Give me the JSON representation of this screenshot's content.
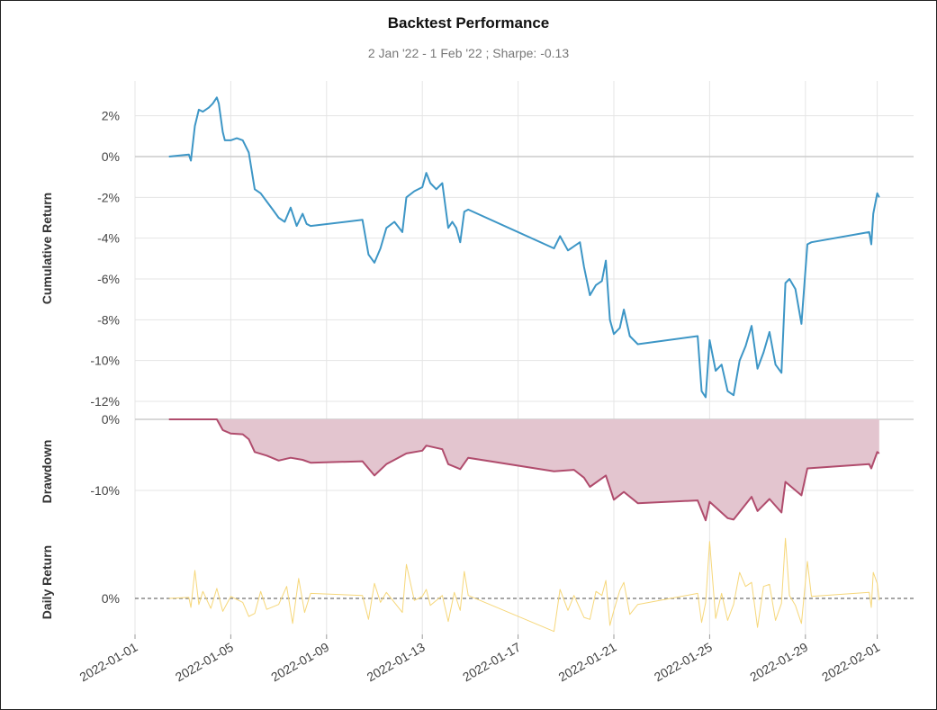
{
  "title": "Backtest Performance",
  "subtitle": "2 Jan '22 -  1 Feb '22 ;  Sharpe: -0.13",
  "colors": {
    "cumulative": "#3d96c6",
    "drawdown_line": "#b04c6d",
    "drawdown_fill": "#e3c5cf",
    "daily": "#f6d77a",
    "grid": "#e5e5e5",
    "zero": "#cccccc"
  },
  "chart_data": [
    {
      "type": "line",
      "ylabel": "Cumulative Return",
      "x_ticks": [
        "2022-01-01",
        "2022-01-05",
        "2022-01-09",
        "2022-01-13",
        "2022-01-17",
        "2022-01-21",
        "2022-01-25",
        "2022-01-29",
        "2022-02-01"
      ],
      "y_ticks": [
        "2%",
        "0%",
        "-2%",
        "-4%",
        "-6%",
        "-8%",
        "-10%",
        "-12%"
      ],
      "y_tick_values": [
        2,
        0,
        -2,
        -4,
        -6,
        -8,
        -10,
        -12
      ],
      "ylim": [
        -12.8,
        3.6
      ],
      "grid": true,
      "points": [
        [
          "2022-01-02 10:00",
          0
        ],
        [
          "2022-01-03 06:00",
          0.1
        ],
        [
          "2022-01-03 08:00",
          -0.2
        ],
        [
          "2022-01-03 12:00",
          1.5
        ],
        [
          "2022-01-03 16:00",
          2.3
        ],
        [
          "2022-01-03 20:00",
          2.2
        ],
        [
          "2022-01-04 02:00",
          2.4
        ],
        [
          "2022-01-04 06:00",
          2.6
        ],
        [
          "2022-01-04 10:00",
          2.9
        ],
        [
          "2022-01-04 12:00",
          2.6
        ],
        [
          "2022-01-04 16:00",
          1.2
        ],
        [
          "2022-01-04 18:00",
          0.8
        ],
        [
          "2022-01-05 00:00",
          0.8
        ],
        [
          "2022-01-05 06:00",
          0.9
        ],
        [
          "2022-01-05 12:00",
          0.8
        ],
        [
          "2022-01-05 18:00",
          0.2
        ],
        [
          "2022-01-06 00:00",
          -1.6
        ],
        [
          "2022-01-06 06:00",
          -1.8
        ],
        [
          "2022-01-06 12:00",
          -2.2
        ],
        [
          "2022-01-06 18:00",
          -2.6
        ],
        [
          "2022-01-07 00:00",
          -3.0
        ],
        [
          "2022-01-07 06:00",
          -3.2
        ],
        [
          "2022-01-07 12:00",
          -2.5
        ],
        [
          "2022-01-07 18:00",
          -3.4
        ],
        [
          "2022-01-08 00:00",
          -2.8
        ],
        [
          "2022-01-08 04:00",
          -3.3
        ],
        [
          "2022-01-08 08:00",
          -3.4
        ],
        [
          "2022-01-10 12:00",
          -3.1
        ],
        [
          "2022-01-10 18:00",
          -4.8
        ],
        [
          "2022-01-11 00:00",
          -5.2
        ],
        [
          "2022-01-11 06:00",
          -4.5
        ],
        [
          "2022-01-11 12:00",
          -3.5
        ],
        [
          "2022-01-11 20:00",
          -3.2
        ],
        [
          "2022-01-12 04:00",
          -3.7
        ],
        [
          "2022-01-12 08:00",
          -2.0
        ],
        [
          "2022-01-12 16:00",
          -1.7
        ],
        [
          "2022-01-13 00:00",
          -1.5
        ],
        [
          "2022-01-13 04:00",
          -0.8
        ],
        [
          "2022-01-13 08:00",
          -1.3
        ],
        [
          "2022-01-13 14:00",
          -1.6
        ],
        [
          "2022-01-13 20:00",
          -1.3
        ],
        [
          "2022-01-14 02:00",
          -3.5
        ],
        [
          "2022-01-14 06:00",
          -3.2
        ],
        [
          "2022-01-14 10:00",
          -3.5
        ],
        [
          "2022-01-14 14:00",
          -4.2
        ],
        [
          "2022-01-14 18:00",
          -2.7
        ],
        [
          "2022-01-14 22:00",
          -2.6
        ],
        [
          "2022-01-18 12:00",
          -4.5
        ],
        [
          "2022-01-18 18:00",
          -3.9
        ],
        [
          "2022-01-19 02:00",
          -4.6
        ],
        [
          "2022-01-19 08:00",
          -4.4
        ],
        [
          "2022-01-19 14:00",
          -4.2
        ],
        [
          "2022-01-19 18:00",
          -5.4
        ],
        [
          "2022-01-20 00:00",
          -6.8
        ],
        [
          "2022-01-20 06:00",
          -6.3
        ],
        [
          "2022-01-20 12:00",
          -6.1
        ],
        [
          "2022-01-20 16:00",
          -5.1
        ],
        [
          "2022-01-20 20:00",
          -8.0
        ],
        [
          "2022-01-21 00:00",
          -8.7
        ],
        [
          "2022-01-21 06:00",
          -8.4
        ],
        [
          "2022-01-21 10:00",
          -7.5
        ],
        [
          "2022-01-21 16:00",
          -8.8
        ],
        [
          "2022-01-22 00:00",
          -9.2
        ],
        [
          "2022-01-24 12:00",
          -8.8
        ],
        [
          "2022-01-24 16:00",
          -11.5
        ],
        [
          "2022-01-24 20:00",
          -11.8
        ],
        [
          "2022-01-25 00:00",
          -9.0
        ],
        [
          "2022-01-25 06:00",
          -10.5
        ],
        [
          "2022-01-25 12:00",
          -10.2
        ],
        [
          "2022-01-25 18:00",
          -11.5
        ],
        [
          "2022-01-26 00:00",
          -11.7
        ],
        [
          "2022-01-26 06:00",
          -10.0
        ],
        [
          "2022-01-26 12:00",
          -9.3
        ],
        [
          "2022-01-26 18:00",
          -8.3
        ],
        [
          "2022-01-27 00:00",
          -10.4
        ],
        [
          "2022-01-27 06:00",
          -9.6
        ],
        [
          "2022-01-27 12:00",
          -8.6
        ],
        [
          "2022-01-27 18:00",
          -10.2
        ],
        [
          "2022-01-28 00:00",
          -10.6
        ],
        [
          "2022-01-28 04:00",
          -6.2
        ],
        [
          "2022-01-28 08:00",
          -6.0
        ],
        [
          "2022-01-28 14:00",
          -6.5
        ],
        [
          "2022-01-28 20:00",
          -8.2
        ],
        [
          "2022-01-29 02:00",
          -4.3
        ],
        [
          "2022-01-29 06:00",
          -4.2
        ],
        [
          "2022-01-31 16:00",
          -3.7
        ],
        [
          "2022-01-31 18:00",
          -4.3
        ],
        [
          "2022-01-31 20:00",
          -2.8
        ],
        [
          "2022-02-01 00:00",
          -1.8
        ],
        [
          "2022-02-01 02:00",
          -2.0
        ]
      ]
    },
    {
      "type": "area",
      "ylabel": "Drawdown",
      "y_ticks": [
        "0%",
        "-10%"
      ],
      "y_tick_values": [
        0,
        -10
      ],
      "ylim": [
        -15,
        0
      ],
      "grid": true,
      "points": [
        [
          "2022-01-02 10:00",
          0
        ],
        [
          "2022-01-04 00:00",
          0
        ],
        [
          "2022-01-04 10:00",
          0
        ],
        [
          "2022-01-04 16:00",
          -1.5
        ],
        [
          "2022-01-05 00:00",
          -2.0
        ],
        [
          "2022-01-05 12:00",
          -2.1
        ],
        [
          "2022-01-05 18:00",
          -2.8
        ],
        [
          "2022-01-06 00:00",
          -4.6
        ],
        [
          "2022-01-06 12:00",
          -5.1
        ],
        [
          "2022-01-07 00:00",
          -5.8
        ],
        [
          "2022-01-07 12:00",
          -5.4
        ],
        [
          "2022-01-08 00:00",
          -5.7
        ],
        [
          "2022-01-08 08:00",
          -6.1
        ],
        [
          "2022-01-10 12:00",
          -5.9
        ],
        [
          "2022-01-11 00:00",
          -7.9
        ],
        [
          "2022-01-11 12:00",
          -6.3
        ],
        [
          "2022-01-12 08:00",
          -4.8
        ],
        [
          "2022-01-13 00:00",
          -4.4
        ],
        [
          "2022-01-13 04:00",
          -3.7
        ],
        [
          "2022-01-13 20:00",
          -4.2
        ],
        [
          "2022-01-14 02:00",
          -6.3
        ],
        [
          "2022-01-14 14:00",
          -7.0
        ],
        [
          "2022-01-14 22:00",
          -5.4
        ],
        [
          "2022-01-18 12:00",
          -7.3
        ],
        [
          "2022-01-19 08:00",
          -7.1
        ],
        [
          "2022-01-19 18:00",
          -8.2
        ],
        [
          "2022-01-20 00:00",
          -9.5
        ],
        [
          "2022-01-20 16:00",
          -7.9
        ],
        [
          "2022-01-21 00:00",
          -11.3
        ],
        [
          "2022-01-21 10:00",
          -10.2
        ],
        [
          "2022-01-22 00:00",
          -11.8
        ],
        [
          "2022-01-24 12:00",
          -11.4
        ],
        [
          "2022-01-24 20:00",
          -14.2
        ],
        [
          "2022-01-25 00:00",
          -11.6
        ],
        [
          "2022-01-25 18:00",
          -13.9
        ],
        [
          "2022-01-26 00:00",
          -14.1
        ],
        [
          "2022-01-26 18:00",
          -10.9
        ],
        [
          "2022-01-27 00:00",
          -12.9
        ],
        [
          "2022-01-27 12:00",
          -11.2
        ],
        [
          "2022-01-28 00:00",
          -13.1
        ],
        [
          "2022-01-28 04:00",
          -8.8
        ],
        [
          "2022-01-28 20:00",
          -10.7
        ],
        [
          "2022-01-29 02:00",
          -6.9
        ],
        [
          "2022-01-31 16:00",
          -6.3
        ],
        [
          "2022-01-31 18:00",
          -6.9
        ],
        [
          "2022-02-01 00:00",
          -4.6
        ],
        [
          "2022-02-01 02:00",
          -4.8
        ]
      ]
    },
    {
      "type": "line",
      "ylabel": "Daily Return",
      "y_ticks": [
        "0%"
      ],
      "y_tick_values": [
        0
      ],
      "ylim": [
        -3.6,
        6.5
      ],
      "grid": false,
      "zero_line": "dashed",
      "points": [
        [
          "2022-01-02 10:00",
          0
        ],
        [
          "2022-01-03 06:00",
          0.1
        ],
        [
          "2022-01-03 08:00",
          -0.9
        ],
        [
          "2022-01-03 12:00",
          2.8
        ],
        [
          "2022-01-03 16:00",
          -0.6
        ],
        [
          "2022-01-03 20:00",
          0.7
        ],
        [
          "2022-01-04 04:00",
          -1.0
        ],
        [
          "2022-01-04 10:00",
          1.0
        ],
        [
          "2022-01-04 16:00",
          -1.3
        ],
        [
          "2022-01-05 00:00",
          0.2
        ],
        [
          "2022-01-05 12:00",
          -0.4
        ],
        [
          "2022-01-05 18:00",
          -1.8
        ],
        [
          "2022-01-06 00:00",
          -1.5
        ],
        [
          "2022-01-06 06:00",
          0.7
        ],
        [
          "2022-01-06 12:00",
          -1.1
        ],
        [
          "2022-01-07 00:00",
          -0.6
        ],
        [
          "2022-01-07 08:00",
          1.2
        ],
        [
          "2022-01-07 14:00",
          -2.5
        ],
        [
          "2022-01-07 20:00",
          2.0
        ],
        [
          "2022-01-08 02:00",
          -1.4
        ],
        [
          "2022-01-08 08:00",
          0.5
        ],
        [
          "2022-01-10 12:00",
          0.3
        ],
        [
          "2022-01-10 18:00",
          -2.1
        ],
        [
          "2022-01-11 00:00",
          1.5
        ],
        [
          "2022-01-11 06:00",
          -0.4
        ],
        [
          "2022-01-11 12:00",
          0.6
        ],
        [
          "2022-01-12 04:00",
          -1.4
        ],
        [
          "2022-01-12 08:00",
          3.4
        ],
        [
          "2022-01-12 16:00",
          -0.2
        ],
        [
          "2022-01-13 00:00",
          0.2
        ],
        [
          "2022-01-13 04:00",
          0.9
        ],
        [
          "2022-01-13 08:00",
          -0.7
        ],
        [
          "2022-01-13 20:00",
          0.3
        ],
        [
          "2022-01-14 02:00",
          -2.3
        ],
        [
          "2022-01-14 08:00",
          0.6
        ],
        [
          "2022-01-14 14:00",
          -1.2
        ],
        [
          "2022-01-14 18:00",
          2.7
        ],
        [
          "2022-01-14 22:00",
          0.3
        ],
        [
          "2022-01-18 12:00",
          -3.3
        ],
        [
          "2022-01-18 18:00",
          0.9
        ],
        [
          "2022-01-19 02:00",
          -1.2
        ],
        [
          "2022-01-19 08:00",
          0.3
        ],
        [
          "2022-01-19 18:00",
          -1.9
        ],
        [
          "2022-01-20 00:00",
          -2.1
        ],
        [
          "2022-01-20 06:00",
          0.7
        ],
        [
          "2022-01-20 12:00",
          0.3
        ],
        [
          "2022-01-20 16:00",
          1.8
        ],
        [
          "2022-01-20 20:00",
          -2.7
        ],
        [
          "2022-01-21 00:00",
          -1.2
        ],
        [
          "2022-01-21 06:00",
          0.8
        ],
        [
          "2022-01-21 10:00",
          1.6
        ],
        [
          "2022-01-21 16:00",
          -1.6
        ],
        [
          "2022-01-22 00:00",
          -0.6
        ],
        [
          "2022-01-24 12:00",
          0.5
        ],
        [
          "2022-01-24 16:00",
          -2.4
        ],
        [
          "2022-01-24 20:00",
          -0.4
        ],
        [
          "2022-01-25 00:00",
          5.7
        ],
        [
          "2022-01-25 06:00",
          -2.0
        ],
        [
          "2022-01-25 12:00",
          0.5
        ],
        [
          "2022-01-25 18:00",
          -2.2
        ],
        [
          "2022-01-26 00:00",
          -0.6
        ],
        [
          "2022-01-26 06:00",
          2.6
        ],
        [
          "2022-01-26 12:00",
          1.2
        ],
        [
          "2022-01-26 18:00",
          1.6
        ],
        [
          "2022-01-27 00:00",
          -2.9
        ],
        [
          "2022-01-27 06:00",
          1.2
        ],
        [
          "2022-01-27 12:00",
          1.4
        ],
        [
          "2022-01-27 18:00",
          -2.2
        ],
        [
          "2022-01-28 00:00",
          -0.5
        ],
        [
          "2022-01-28 04:00",
          6.0
        ],
        [
          "2022-01-28 08:00",
          0.3
        ],
        [
          "2022-01-28 14:00",
          -0.7
        ],
        [
          "2022-01-28 20:00",
          -2.5
        ],
        [
          "2022-01-29 02:00",
          3.7
        ],
        [
          "2022-01-29 06:00",
          0.2
        ],
        [
          "2022-01-31 16:00",
          0.6
        ],
        [
          "2022-01-31 18:00",
          -0.9
        ],
        [
          "2022-01-31 20:00",
          2.6
        ],
        [
          "2022-02-01 00:00",
          1.5
        ],
        [
          "2022-02-01 02:00",
          -0.2
        ]
      ]
    }
  ]
}
